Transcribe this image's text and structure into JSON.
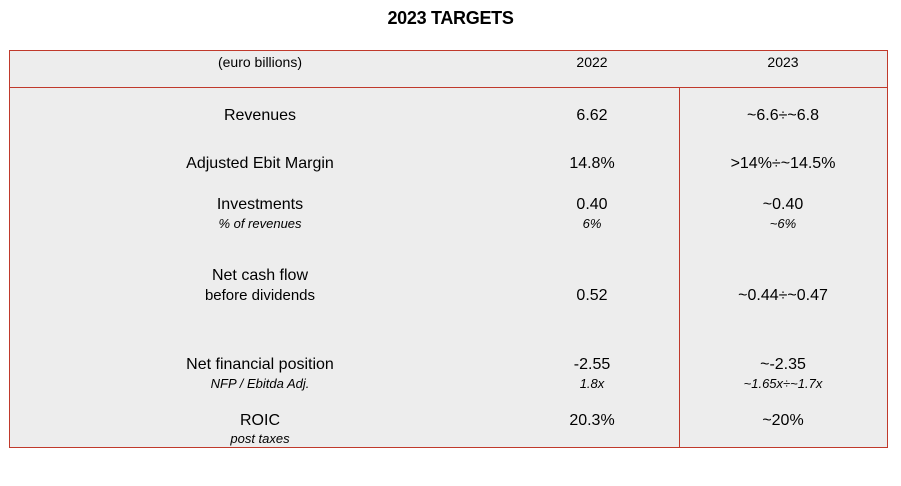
{
  "title": "2023 TARGETS",
  "header": {
    "unit": "(euro billions)",
    "col_2022": "2022",
    "col_2023": "2023"
  },
  "rows": [
    {
      "label": "Revenues",
      "v2022": "6.62",
      "v2023": "~6.6÷~6.8"
    },
    {
      "label": "Adjusted Ebit Margin",
      "v2022": "14.8%",
      "v2023": ">14%÷~14.5%"
    },
    {
      "label": "Investments",
      "sublabel": "% of revenues",
      "v2022": "0.40",
      "sub2022": "6%",
      "v2023": "~0.40",
      "sub2023": "~6%"
    },
    {
      "label": "Net cash flow",
      "label_line2": "before dividends",
      "v2022": "0.52",
      "v2023": "~0.44÷~0.47"
    },
    {
      "label": "Net financial position",
      "sublabel": "NFP / Ebitda Adj.",
      "v2022": "-2.55",
      "sub2022": "1.8x",
      "v2023": "~-2.35",
      "sub2023": "~1.65x÷~1.7x"
    },
    {
      "label": "ROIC",
      "sublabel": "post taxes",
      "v2022": "20.3%",
      "v2023": "~20%"
    }
  ],
  "colors": {
    "border": "#c0392b",
    "table_background": "#ededed",
    "text": "#000000"
  }
}
